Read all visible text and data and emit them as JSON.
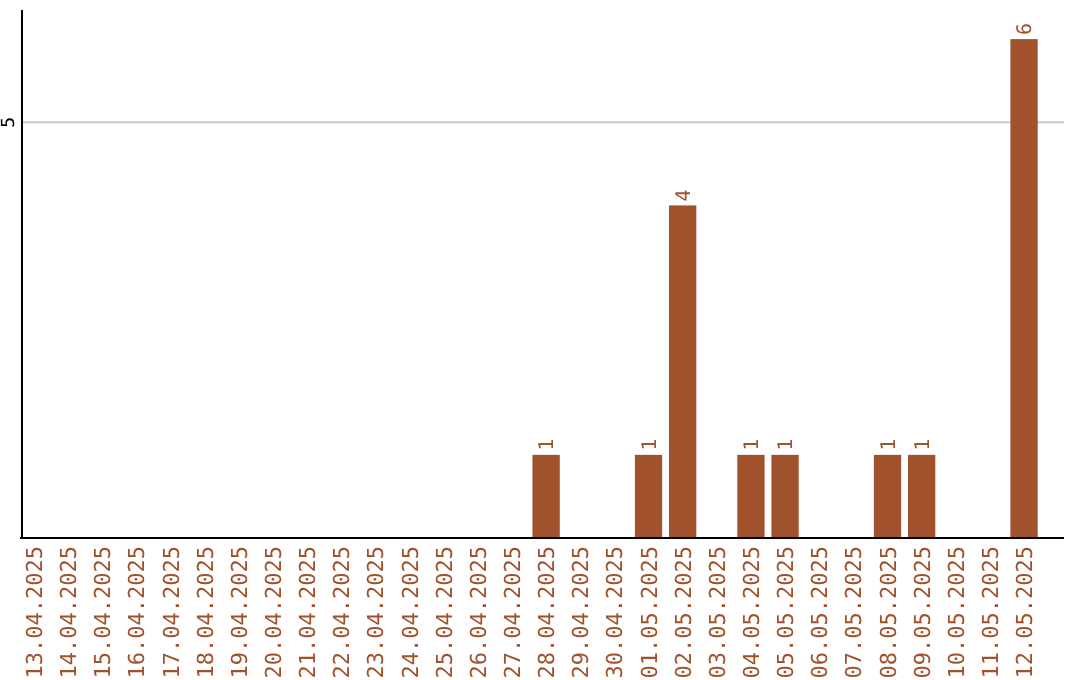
{
  "chart_data": {
    "type": "bar",
    "categories": [
      "13.04.2025",
      "14.04.2025",
      "15.04.2025",
      "16.04.2025",
      "17.04.2025",
      "18.04.2025",
      "19.04.2025",
      "20.04.2025",
      "21.04.2025",
      "22.04.2025",
      "23.04.2025",
      "24.04.2025",
      "25.04.2025",
      "26.04.2025",
      "27.04.2025",
      "28.04.2025",
      "29.04.2025",
      "30.04.2025",
      "01.05.2025",
      "02.05.2025",
      "03.05.2025",
      "04.05.2025",
      "05.05.2025",
      "06.05.2025",
      "07.05.2025",
      "08.05.2025",
      "09.05.2025",
      "10.05.2025",
      "11.05.2025",
      "12.05.2025"
    ],
    "values": [
      null,
      null,
      null,
      null,
      null,
      null,
      null,
      null,
      null,
      null,
      null,
      null,
      null,
      null,
      null,
      1,
      null,
      null,
      1,
      4,
      null,
      1,
      1,
      null,
      null,
      1,
      1,
      null,
      null,
      6
    ],
    "data_labels": true,
    "color": "#a0522d",
    "ylim": [
      0,
      6.35
    ],
    "yticks": [
      5
    ],
    "grid": "y"
  }
}
